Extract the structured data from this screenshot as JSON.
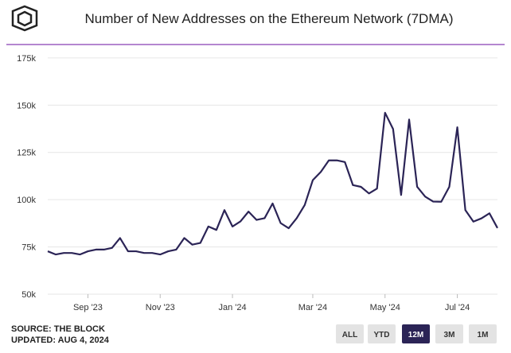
{
  "chart_data": {
    "type": "line",
    "title": "Number of New Addresses on the Ethereum Network (7DMA)",
    "source": "SOURCE: THE BLOCK",
    "updated": "UPDATED: AUG 4, 2024",
    "ranges": [
      "ALL",
      "YTD",
      "12M",
      "3M",
      "1M"
    ],
    "active_range": "12M",
    "categories": [
      null,
      null,
      null,
      null,
      null,
      "Sep '23",
      null,
      null,
      null,
      null,
      null,
      null,
      null,
      null,
      "Nov '23",
      null,
      null,
      null,
      null,
      null,
      null,
      null,
      null,
      "Jan '24",
      null,
      null,
      null,
      null,
      null,
      null,
      null,
      null,
      null,
      "Mar '24",
      null,
      null,
      null,
      null,
      null,
      null,
      null,
      null,
      "May '24",
      null,
      null,
      null,
      null,
      null,
      null,
      null,
      null,
      "Jul '24",
      null,
      null,
      null,
      null,
      null
    ],
    "series": [
      {
        "name": "New Addresses",
        "color": "#2b2456",
        "values": [
          72700,
          71000,
          71800,
          71800,
          71000,
          72700,
          73600,
          73600,
          74500,
          79700,
          72700,
          72700,
          71800,
          71800,
          71000,
          72700,
          73600,
          79700,
          76200,
          77100,
          85800,
          84000,
          94500,
          85800,
          88500,
          93700,
          89300,
          90200,
          98000,
          87600,
          84900,
          90200,
          97200,
          110300,
          114700,
          120800,
          120800,
          119900,
          107700,
          106800,
          103300,
          105900,
          146000,
          137400,
          102500,
          142400,
          106800,
          101600,
          99000,
          98900,
          106800,
          138300,
          94500,
          88400,
          90100,
          92800,
          85000
        ]
      }
    ],
    "ylim": [
      50000,
      180000
    ],
    "yticks": [
      {
        "value": 50000,
        "label": "50k"
      },
      {
        "value": 75000,
        "label": "75k"
      },
      {
        "value": 100000,
        "label": "100k"
      },
      {
        "value": 125000,
        "label": "125k"
      },
      {
        "value": 150000,
        "label": "150k"
      },
      {
        "value": 175000,
        "label": "175k"
      }
    ],
    "grid": true
  }
}
